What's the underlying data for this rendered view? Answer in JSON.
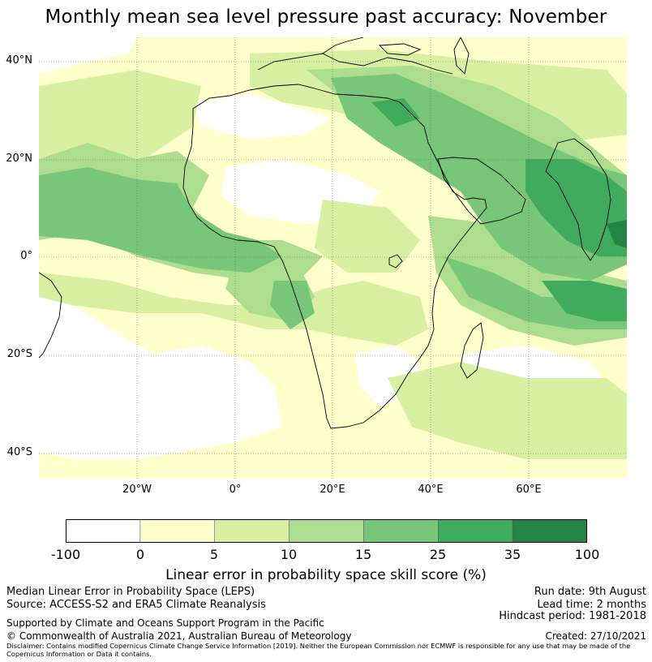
{
  "title": "Monthly mean sea level pressure past accuracy: November",
  "map": {
    "lat_labels": [
      "40°N",
      "20°N",
      "0°",
      "20°S",
      "40°S"
    ],
    "lon_labels": [
      "20°W",
      "0°",
      "20°E",
      "40°E",
      "60°E"
    ],
    "colors": {
      "ocean_none": "#ffffff",
      "c0_5": "#ffffcc",
      "c5_10": "#d9f0a3",
      "c10_15": "#addd8e",
      "c15_25": "#78c679",
      "c25_35": "#41ab5d",
      "c35_100": "#238443",
      "coast": "#000000",
      "grid": "#666666"
    }
  },
  "colorbar": {
    "ticks": [
      "-100",
      "0",
      "5",
      "10",
      "15",
      "25",
      "35",
      "100"
    ],
    "colors": [
      "#ffffff",
      "#ffffcc",
      "#d9f0a3",
      "#addd8e",
      "#78c679",
      "#41ab5d",
      "#238443"
    ],
    "label": "Linear error in probability space skill score (%)"
  },
  "footer": {
    "left1": "Median Linear Error in Probability Space (LEPS)",
    "left2": "Source: ACCESS-S2 and ERA5 Climate Reanalysis",
    "left3": "Supported by Climate and Oceans Support Program in the Pacific",
    "left4": "© Commonwealth of Australia 2021, Australian Bureau of Meteorology",
    "right1": "Run date: 9th August",
    "right2": "Lead time: 2 months",
    "right3": "Hindcast period: 1981-2018",
    "right4": "Created: 27/10/2021",
    "disclaimer": "Disclaimer: Contains modified Copernicus Climate Change Service Information [2019]. Neither the European Commission nor ECMWF is responsible for any use that may be made of the Copernicus Information or Data it contains."
  }
}
